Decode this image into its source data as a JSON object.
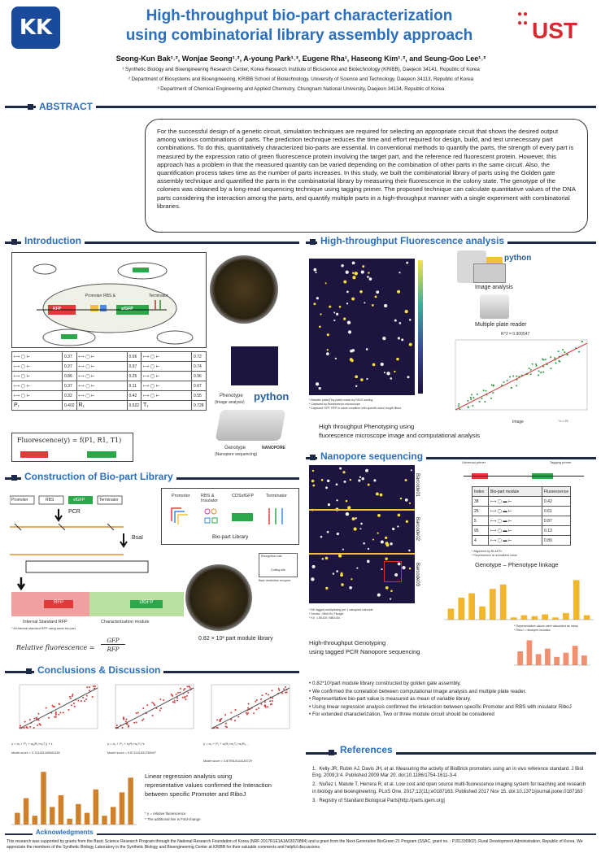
{
  "header": {
    "logo_left": "KK",
    "logo_right": "UST",
    "title_line1": "High-throughput bio-part characterization",
    "title_line2": "using combinatorial library assembly approach",
    "authors": "Seong-Kun Bak¹˒², Wonjae Seong¹˒², A-young Park¹˒³, Eugene Rha¹, Haseong Kim¹˒², and Seung-Goo Lee¹˒²",
    "affiliations": [
      "¹ Synthetic Biology and Bioengineering Research Center, Korea Research Institute of Bioscience and Biotechnology (KRIBB), Daejeon 34141, Republic of Korea",
      "² Department of Biosystems and Bioengineering, KRIBB School of Biotechnology, University of Science and Technology, Daejeon 34113, Republic of Korea",
      "³ Department of Chemical Engineering and Applied Chemistry, Chungnam National University, Daejeon 34134, Republic of Korea"
    ]
  },
  "abstract": {
    "heading": "ABSTRACT",
    "text": "For the successful design of a genetic circuit, simulation techniques are required for selecting an appropriate circuit that shows the desired output among various combinations of parts. The prediction technique reduces the time and effort required for design, build, and test unnecessary part combinations. To do this, quantitatively characterized bio-parts are essential. In conventional methods to quantify the parts, the strength of every part is measured by the expression ratio of green fluorescence protein involving the target part, and the reference red fluorescent protein. However, this approach has a problem in that the measured quantity can be varied depending on the combination of other parts in the same circuit. Also, the quantification process takes time as the number of parts increases. In this study, we built the combinatorial library of parts using the Golden gate assembly technique and quantified the parts in the combinatorial library by measuring their fluorescence in the colony state. The genotype of the colonies was obtained by a long-read sequencing technique using tagging primer. The proposed technique can calculate quantitative values of the DNA parts considering the interaction among the parts, and quantify multiple parts in a high-throughput manner with a single experiment with combinatorial libraries."
  },
  "intro": {
    "heading": "Introduction",
    "labels": {
      "rfp": "RFP",
      "sfgfp": "sfGFP",
      "promoter": "Promoter",
      "rbs": "RBS &",
      "terminator": "Terminator"
    },
    "table": [
      [
        "0.37",
        "0.66",
        "0.72"
      ],
      [
        "0.27",
        "0.97",
        "0.74"
      ],
      [
        "0.86",
        "0.25",
        "0.96"
      ],
      [
        "0.37",
        "0.11",
        "0.67"
      ],
      [
        "0.32",
        "0.42",
        "0.55"
      ],
      [
        "0.402",
        "0.522",
        "0.728"
      ]
    ],
    "row_labels": [
      "P₁",
      "R₁",
      "T₁"
    ],
    "formula": "Fluorescence(y) = f(P1, R1, T1)",
    "phenotype": "Phenotype",
    "phenotype_sub": "(Image analysis)",
    "python": "python",
    "genotype": "Genotype",
    "genotype_sub": "(Nanopore sequencing)",
    "nanopore": "NANOPORE"
  },
  "construction": {
    "heading": "Construction of Bio-part Library",
    "pcr": "PCR",
    "bsai": "BsaI",
    "parts": [
      "Promoter",
      "RBS",
      "sfGFP",
      "Terminator"
    ],
    "library_cols": [
      "Promoter",
      "RBS & Insulator",
      "CDSsfGFP",
      "Terminator"
    ],
    "library_label": "Bio-part Library",
    "recognition": "Recognition site",
    "cutting": "Cutting site",
    "bsai_enzyme": "BsaI restriction enzyme",
    "internal": "Internal Standard RFP",
    "module": "Characterization module",
    "note": "* All internal standard RFP using same bio-part",
    "rel_label": "Relative fluorescence =",
    "rel_num": "GFP",
    "rel_den": "RFP",
    "library_size": "0.82 × 10² part module library"
  },
  "htfa": {
    "heading": "High-throughput Fluorescence analysis",
    "python": "python",
    "image_analysis": "Image analysis",
    "plate_reader": "Multiple plate reader",
    "r2": "R^2 = 0.900547",
    "notes": [
      "* Bladder plate(Tiny plate) made by FACS sorting",
      "* Captured by fluorescence microscope",
      "* Captured GFP, RFP in same condition with specific wave length filters"
    ],
    "xlabel": "Image",
    "ylabel": "Value",
    "n_note": "* n = 23",
    "caption_line1": "High throughput Phenotyping using",
    "caption_line2": "fluorescence microscope image and computational analysis"
  },
  "nanopore": {
    "heading": "Nanopore sequencing",
    "barcodes": [
      "Barcode01",
      "Barcode02",
      "Barcode03"
    ],
    "universal": "Universal primer",
    "tagging": "Tagging primer",
    "table_head": [
      "Index",
      "Bio-part module",
      "Fluorescence"
    ],
    "table_rows": [
      [
        "38",
        "0.42"
      ],
      [
        "25",
        "0.61"
      ],
      [
        "5",
        "0.87"
      ],
      [
        "95",
        "0.13"
      ],
      [
        "4",
        "0.89"
      ]
    ],
    "notes": [
      "* BK tagged multiplexing per 1 nanopore barcode",
      "* Device : MinION, Flongle",
      "* Kit : LSK109, NBD104"
    ],
    "align_notes": [
      "* Alignment by BLASTn",
      "* Fluorescence is normalized value"
    ],
    "linkage": "Genotype – Phenotype linkage",
    "rep_notes": [
      "* Representative values were calculated as mean",
      "* RiboJ = ribozyme insulator"
    ],
    "caption_line1": "High-throughput Genotyping",
    "caption_line2": "using tagged PCR Nanopore sequencing"
  },
  "conclusions": {
    "heading": "Conclusions & Discussion",
    "bullets": [
      "0.82*10²part module library constructed by golden gate assembly.",
      "We confirmed the correlation between computational Image analysis and multiple plate reader.",
      "Representative bio-part value is measured as mean of variable library.",
      "Using linear regression analysis confirmed the interaction between specific Promoter and RBS with insulator RiboJ",
      "For extended characterization, Two or three module circuit should be considered"
    ],
    "eqs": [
      "y = α₀ + P₁ + α₁(R₁+α₂T₁) + ε",
      "y = α₀ + P₁ + α₁R₁+α₂T₁+ε",
      "y = α₀ + P₁ + α₁R₁+α₂T₁+α₃R₁…"
    ],
    "scores": [
      "Model score = 0.741451345081155",
      "Model score = 0.871441531798497",
      "Model score = 0.875915143128729"
    ],
    "lr_line1": "Linear regression analysis using",
    "lr_line2": "representative values confirmed the Interaction",
    "lr_line3": "between specific Promoter and RiboJ",
    "foot1": "* y = relative fluorescence",
    "foot2": "* The additional line is Fold-change"
  },
  "references": {
    "heading": "References",
    "items": [
      "Kelly JR, Rubin AJ, Davis JH, et al. Measuring the activity of BioBrick promoters using an in vivo reference standard. J Biol Eng. 2009;3:4. Published 2009 Mar 20. doi:10.1186/1754-1611-3-4",
      "Nuñez I, Matute T, Herrera R, et al. Low cost and open source multi-fluorescence imaging system for teaching and research in biology and bioengineering. PLoS One. 2017;12(11):e0187163. Published 2017 Nov 15. doi:10.1371/journal.pone.0187163",
      "Registry of Standard Biological Parts[http://parts.igem.org]"
    ]
  },
  "ack": {
    "heading": "Acknowledgments",
    "text": "This research was supported by grants from the Basic Science Research Program through the National Research Foundation of Korea (NRF-2017R1E1A1A03070884) and a grant from the Next-Generation BioGreen 21 Program (SSAC, grant no. : PJ01330902), Rural Development Administration, Republic of Korea. We appreciate the members of the Synthetic Biology Laboratory in the Synthetic Biology and Bioengineering Center at KRIBB for their valuable comments and helpful discussions."
  }
}
